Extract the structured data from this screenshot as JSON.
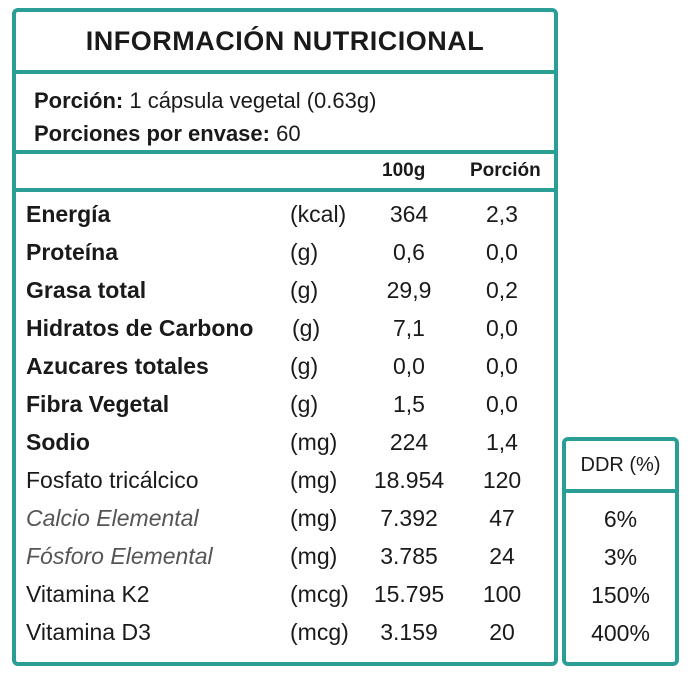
{
  "title": "INFORMACIÓN  NUTRICIONAL",
  "serving": {
    "portion_label": "Porción:",
    "portion_value": " 1 cápsula vegetal (0.63g)",
    "servings_label": "Porciones por envase:",
    "servings_value": " 60"
  },
  "columns": {
    "per100": "100g",
    "portion": "Porción",
    "ddr": "DDR (%)"
  },
  "rows": [
    {
      "name": "Energía",
      "unit": "(kcal)",
      "per100": "364",
      "portion": "2,3"
    },
    {
      "name": "Proteína",
      "unit": "(g)",
      "per100": "0,6",
      "portion": "0,0"
    },
    {
      "name": "Grasa total",
      "unit": "(g)",
      "per100": "29,9",
      "portion": "0,2"
    },
    {
      "name": "Hidratos de Carbono",
      "unit": "(g)",
      "per100": "7,1",
      "portion": "0,0"
    },
    {
      "name": "Azucares totales",
      "unit": "(g)",
      "per100": "0,0",
      "portion": "0,0"
    },
    {
      "name": "Fibra Vegetal",
      "unit": "(g)",
      "per100": "1,5",
      "portion": "0,0"
    },
    {
      "name": "Sodio",
      "unit": "(mg)",
      "per100": "224",
      "portion": "1,4"
    },
    {
      "name": "Fosfato tricálcico",
      "unit": "(mg)",
      "per100": "18.954",
      "portion": "120"
    },
    {
      "name": "Calcio Elemental",
      "unit": "(mg)",
      "per100": "7.392",
      "portion": "47"
    },
    {
      "name": "Fósforo Elemental",
      "unit": "(mg)",
      "per100": "3.785",
      "portion": "24"
    },
    {
      "name": "Vitamina K2",
      "unit": "(mcg)",
      "per100": "15.795",
      "portion": "100"
    },
    {
      "name": "Vitamina D3",
      "unit": "(mcg)",
      "per100": "3.159",
      "portion": "20"
    }
  ],
  "ddr": [
    "6%",
    "3%",
    "150%",
    "400%"
  ],
  "colors": {
    "border": "#2a9d94"
  }
}
